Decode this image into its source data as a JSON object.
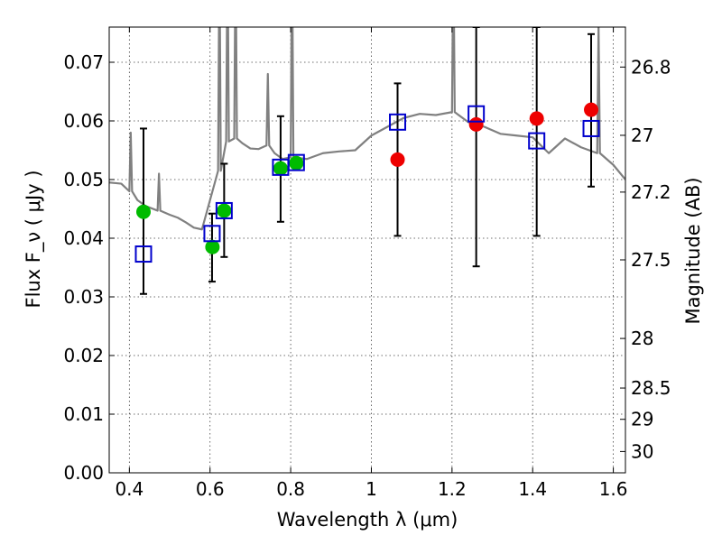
{
  "chart_data": {
    "type": "scatter",
    "xlabel": "Wavelength λ (μm)",
    "ylabel": "Flux F_ν ( μJy )",
    "ylabel_right": "Magnitude (AB)",
    "xlim": [
      0.35,
      1.63
    ],
    "ylim": [
      0.0,
      0.076
    ],
    "x_ticks": [
      "0.4",
      "0.6",
      "0.8",
      "1",
      "1.2",
      "1.4",
      "1.6"
    ],
    "y_ticks": [
      "0.00",
      "0.01",
      "0.02",
      "0.03",
      "0.04",
      "0.05",
      "0.06",
      "0.07"
    ],
    "right_ticks": [
      "26.8",
      "27",
      "27.2",
      "27.5",
      "28",
      "28.5",
      "29",
      "30"
    ],
    "grid": true,
    "series": [
      {
        "marker": "circle",
        "color": "#00bb00",
        "x": [
          0.435,
          0.606,
          0.635,
          0.775,
          0.814
        ],
        "y": [
          0.0445,
          0.0385,
          0.0447,
          0.0519,
          0.0528
        ]
      },
      {
        "marker": "circle",
        "color": "#ee0000",
        "x": [
          1.065,
          1.26,
          1.41,
          1.545
        ],
        "y": [
          0.0534,
          0.0594,
          0.0604,
          0.0619
        ]
      },
      {
        "marker": "open-square",
        "color": "#0000cc",
        "x": [
          0.435,
          0.605,
          0.635,
          0.775,
          0.814,
          1.065,
          1.26,
          1.41,
          1.545
        ],
        "y": [
          0.0373,
          0.0408,
          0.0447,
          0.0521,
          0.0529,
          0.0598,
          0.0612,
          0.0566,
          0.0587
        ]
      }
    ],
    "error_bars": {
      "color": "#000000",
      "x": [
        0.435,
        0.605,
        0.635,
        0.775,
        1.065,
        1.26,
        1.41,
        1.545
      ],
      "y": [
        0.0447,
        0.0385,
        0.0447,
        0.0519,
        0.0534,
        0.0594,
        0.0604,
        0.0619
      ],
      "low": [
        0.0305,
        0.0326,
        0.0368,
        0.0428,
        0.0404,
        0.0352,
        0.0404,
        0.0488
      ],
      "high": [
        0.0587,
        0.0442,
        0.0527,
        0.0608,
        0.0664,
        0.076,
        0.076,
        0.0748
      ]
    },
    "spectrum": {
      "color": "#808080",
      "x": [
        0.35,
        0.38,
        0.4,
        0.42,
        0.44,
        0.47,
        0.5,
        0.52,
        0.54,
        0.56,
        0.58,
        0.6,
        0.62,
        0.64,
        0.66,
        0.68,
        0.7,
        0.72,
        0.74,
        0.76,
        0.78,
        0.8,
        0.84,
        0.88,
        0.92,
        0.96,
        1.0,
        1.04,
        1.08,
        1.12,
        1.16,
        1.2,
        1.24,
        1.28,
        1.32,
        1.36,
        1.4,
        1.44,
        1.48,
        1.52,
        1.56,
        1.6,
        1.63
      ],
      "y": [
        0.0495,
        0.0493,
        0.048,
        0.0465,
        0.0455,
        0.0447,
        0.044,
        0.0435,
        0.0427,
        0.0418,
        0.0415,
        0.0465,
        0.0515,
        0.0565,
        0.057,
        0.0562,
        0.0553,
        0.0552,
        0.0558,
        0.0545,
        0.0535,
        0.0538,
        0.0535,
        0.0545,
        0.0548,
        0.055,
        0.0575,
        0.059,
        0.0605,
        0.0612,
        0.061,
        0.0615,
        0.0598,
        0.059,
        0.0578,
        0.0575,
        0.0572,
        0.0545,
        0.057,
        0.0555,
        0.0545,
        0.0525,
        0.05
      ]
    }
  }
}
